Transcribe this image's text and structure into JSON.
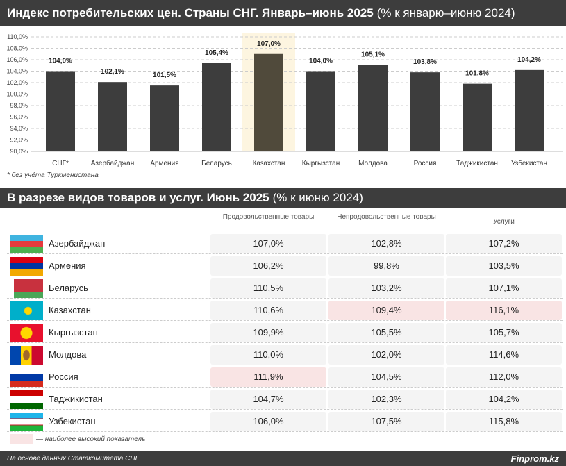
{
  "header": {
    "title_bold": "Индекс потребительских цен. Страны СНГ. Январь–июнь 2025",
    "title_rest": "(% к январю–июню 2024)"
  },
  "chart_data": {
    "type": "bar",
    "categories": [
      "СНГ*",
      "Азербайджан",
      "Армения",
      "Беларусь",
      "Казахстан",
      "Кыргызстан",
      "Молдова",
      "Россия",
      "Таджикистан",
      "Узбекистан"
    ],
    "values": [
      104.0,
      102.1,
      101.5,
      105.4,
      107.0,
      104.0,
      105.1,
      103.8,
      101.8,
      104.2
    ],
    "data_labels": [
      "104,0%",
      "102,1%",
      "101,5%",
      "105,4%",
      "107,0%",
      "104,0%",
      "105,1%",
      "103,8%",
      "101,8%",
      "104,2%"
    ],
    "ylim": [
      90,
      110
    ],
    "yticks": [
      "90,0%",
      "92,0%",
      "94,0%",
      "96,0%",
      "98,0%",
      "100,0%",
      "102,0%",
      "104,0%",
      "106,0%",
      "108,0%",
      "110,0%"
    ],
    "grid": true,
    "highlight": "Казахстан",
    "colors": {
      "bar": "#3d3d3d",
      "highlight_bar": "#504a3b",
      "highlight_bg": "#fdf5e0"
    }
  },
  "note": "* без учёта Туркменистана",
  "table": {
    "title_bold": "В разрезе видов товаров и услуг. Июнь 2025",
    "title_rest": "(% к июню 2024)",
    "columns": [
      "Продовольственные товары",
      "Непродовольственные товары",
      "Услуги"
    ],
    "rows": [
      {
        "country": "Азербайджан",
        "flag": "azerbaijan",
        "values": [
          "107,0%",
          "102,8%",
          "107,2%"
        ],
        "hi": [
          false,
          false,
          false
        ]
      },
      {
        "country": "Армения",
        "flag": "armenia",
        "values": [
          "106,2%",
          "99,8%",
          "103,5%"
        ],
        "hi": [
          false,
          false,
          false
        ]
      },
      {
        "country": "Беларусь",
        "flag": "belarus",
        "values": [
          "110,5%",
          "103,2%",
          "107,1%"
        ],
        "hi": [
          false,
          false,
          false
        ]
      },
      {
        "country": "Казахстан",
        "flag": "kazakhstan",
        "values": [
          "110,6%",
          "109,4%",
          "116,1%"
        ],
        "hi": [
          false,
          true,
          true
        ]
      },
      {
        "country": "Кыргызстан",
        "flag": "kyrgyzstan",
        "values": [
          "109,9%",
          "105,5%",
          "105,7%"
        ],
        "hi": [
          false,
          false,
          false
        ]
      },
      {
        "country": "Молдова",
        "flag": "moldova",
        "values": [
          "110,0%",
          "102,0%",
          "114,6%"
        ],
        "hi": [
          false,
          false,
          false
        ]
      },
      {
        "country": "Россия",
        "flag": "russia",
        "values": [
          "111,9%",
          "104,5%",
          "112,0%"
        ],
        "hi": [
          true,
          false,
          false
        ]
      },
      {
        "country": "Таджикистан",
        "flag": "tajikistan",
        "values": [
          "104,7%",
          "102,3%",
          "104,2%"
        ],
        "hi": [
          false,
          false,
          false
        ]
      },
      {
        "country": "Узбекистан",
        "flag": "uzbekistan",
        "values": [
          "106,0%",
          "107,5%",
          "115,8%"
        ],
        "hi": [
          false,
          false,
          false
        ]
      }
    ],
    "highlight_color": "#f9e4e4"
  },
  "legend": "— наиболее высокий показатель",
  "footer": {
    "source": "На основе данных Статкомитета СНГ",
    "brand": "Finprom.kz"
  }
}
